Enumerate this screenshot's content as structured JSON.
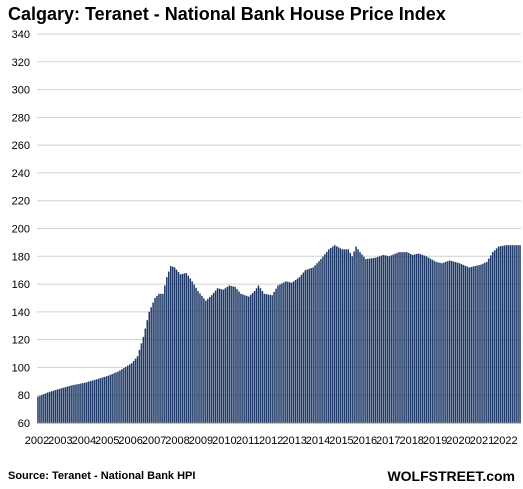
{
  "chart_data": {
    "type": "bar",
    "title": "Calgary: Teranet - National Bank House Price Index",
    "xlabel": "",
    "ylabel": "",
    "ylim": [
      60,
      340
    ],
    "yticks": [
      60,
      80,
      100,
      120,
      140,
      160,
      180,
      200,
      220,
      240,
      260,
      280,
      300,
      320,
      340
    ],
    "xticks": [
      "2002",
      "2003",
      "2004",
      "2005",
      "2006",
      "2007",
      "2008",
      "2009",
      "2010",
      "2011",
      "2012",
      "2013",
      "2014",
      "2015",
      "2016",
      "2017",
      "2018",
      "2019",
      "2020",
      "2021",
      "2022"
    ],
    "grid": true,
    "bar_color": "#1f3a68",
    "frequency": "monthly",
    "start": "2002-01",
    "end": "2022-08",
    "anchors": [
      [
        "2002-01",
        79
      ],
      [
        "2002-06",
        82
      ],
      [
        "2003-01",
        85
      ],
      [
        "2003-06",
        87
      ],
      [
        "2004-01",
        89
      ],
      [
        "2004-06",
        91
      ],
      [
        "2005-01",
        94
      ],
      [
        "2005-06",
        97
      ],
      [
        "2006-01",
        103
      ],
      [
        "2006-04",
        108
      ],
      [
        "2006-07",
        122
      ],
      [
        "2006-10",
        140
      ],
      [
        "2007-01",
        150
      ],
      [
        "2007-03",
        153
      ],
      [
        "2007-05",
        153
      ],
      [
        "2007-07",
        165
      ],
      [
        "2007-09",
        173
      ],
      [
        "2007-11",
        172
      ],
      [
        "2008-02",
        167
      ],
      [
        "2008-05",
        168
      ],
      [
        "2008-08",
        162
      ],
      [
        "2008-11",
        155
      ],
      [
        "2009-03",
        148
      ],
      [
        "2009-06",
        152
      ],
      [
        "2009-09",
        157
      ],
      [
        "2009-12",
        156
      ],
      [
        "2010-03",
        159
      ],
      [
        "2010-06",
        158
      ],
      [
        "2010-09",
        153
      ],
      [
        "2011-01",
        151
      ],
      [
        "2011-04",
        155
      ],
      [
        "2011-06",
        159
      ],
      [
        "2011-09",
        153
      ],
      [
        "2012-01",
        152
      ],
      [
        "2012-04",
        159
      ],
      [
        "2012-08",
        162
      ],
      [
        "2012-11",
        161
      ],
      [
        "2013-03",
        165
      ],
      [
        "2013-06",
        170
      ],
      [
        "2013-10",
        172
      ],
      [
        "2014-02",
        178
      ],
      [
        "2014-06",
        185
      ],
      [
        "2014-09",
        188
      ],
      [
        "2015-01",
        185
      ],
      [
        "2015-04",
        185
      ],
      [
        "2015-06",
        180
      ],
      [
        "2015-08",
        187
      ],
      [
        "2015-10",
        183
      ],
      [
        "2016-01",
        178
      ],
      [
        "2016-06",
        179
      ],
      [
        "2016-10",
        181
      ],
      [
        "2017-01",
        180
      ],
      [
        "2017-06",
        183
      ],
      [
        "2017-10",
        183
      ],
      [
        "2018-01",
        181
      ],
      [
        "2018-04",
        182
      ],
      [
        "2018-08",
        180
      ],
      [
        "2019-01",
        176
      ],
      [
        "2019-04",
        175
      ],
      [
        "2019-08",
        177
      ],
      [
        "2020-01",
        175
      ],
      [
        "2020-06",
        172
      ],
      [
        "2020-12",
        174
      ],
      [
        "2021-03",
        176
      ],
      [
        "2021-06",
        183
      ],
      [
        "2021-09",
        187
      ],
      [
        "2022-01",
        188
      ],
      [
        "2022-08",
        188
      ]
    ]
  },
  "footer": {
    "source": "Source: Teranet - National Bank HPI",
    "brand": "WOLFSTREET.com"
  }
}
